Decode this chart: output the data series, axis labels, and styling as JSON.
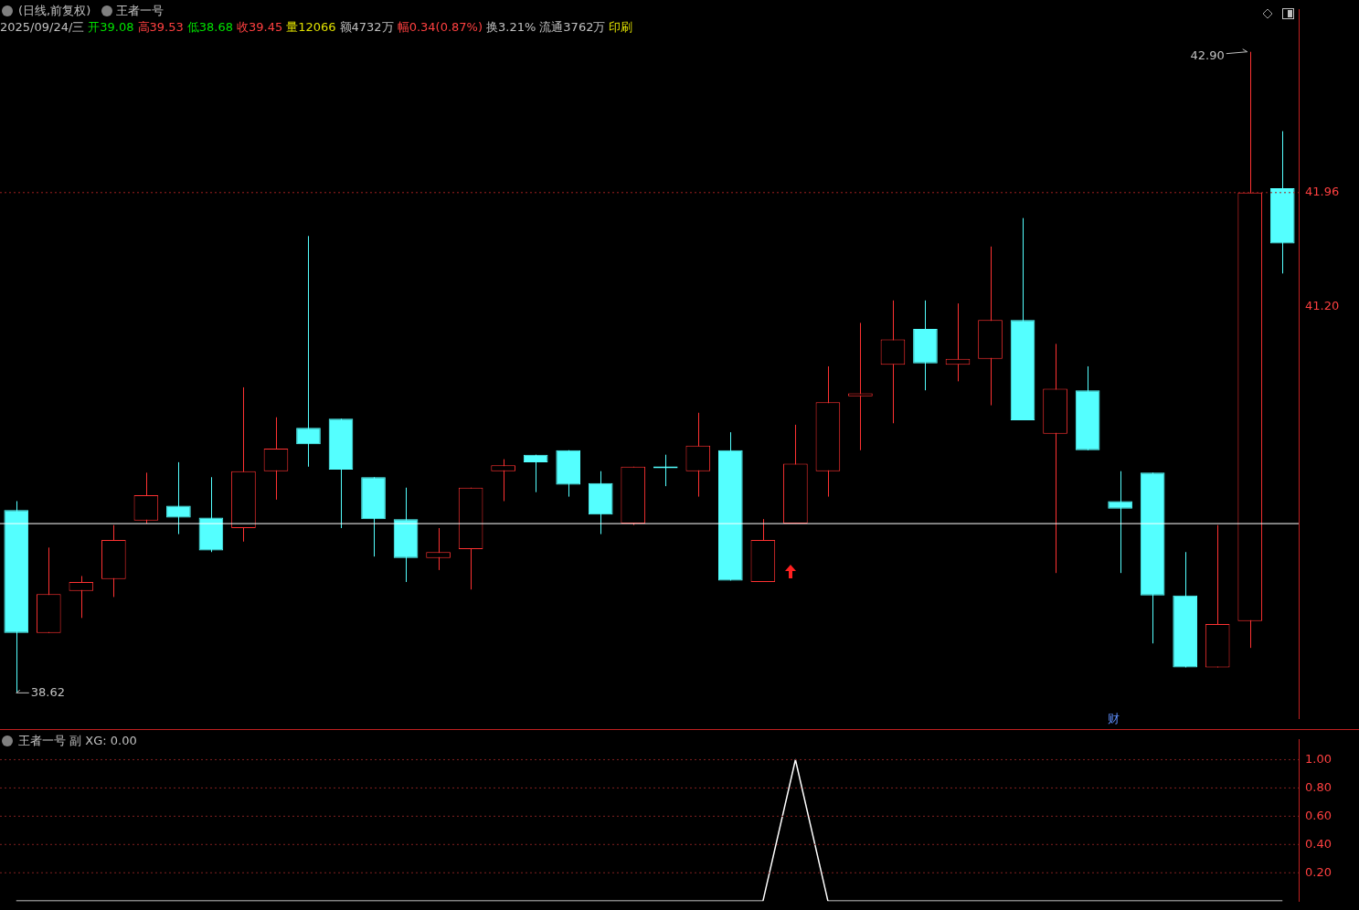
{
  "chart_data": [
    {
      "type": "candlestick",
      "title": "(日线,前复权)",
      "subtitle": "王者一号",
      "annotations": [
        "2025/09/24/三",
        "开39.08",
        "高39.53",
        "低38.68",
        "收39.45",
        "量12066",
        "额4732万",
        "幅0.34(0.87%)",
        "换3.21%",
        "流通3762万",
        "印刷",
        "42.90",
        "38.62",
        "财"
      ],
      "categories": [
        null,
        null,
        null,
        null,
        null,
        null,
        null,
        null,
        null,
        null,
        null,
        null,
        null,
        null,
        null,
        null,
        null,
        null,
        null,
        null,
        null,
        null,
        null,
        null,
        null,
        null,
        null,
        null,
        null,
        null,
        null,
        null,
        null,
        null,
        null,
        null,
        null,
        null,
        null,
        null
      ],
      "ohlc": [
        [
          39.84,
          39.9,
          38.62,
          39.02
        ],
        [
          39.02,
          39.59,
          39.02,
          39.28
        ],
        [
          39.3,
          39.4,
          39.12,
          39.36
        ],
        [
          39.38,
          39.74,
          39.26,
          39.64
        ],
        [
          39.77,
          40.09,
          39.75,
          39.94
        ],
        [
          39.87,
          40.16,
          39.68,
          39.79
        ],
        [
          39.79,
          40.06,
          39.56,
          39.57
        ],
        [
          39.72,
          40.66,
          39.63,
          40.1
        ],
        [
          40.1,
          40.46,
          39.91,
          40.25
        ],
        [
          40.39,
          41.67,
          40.13,
          40.28
        ],
        [
          40.45,
          40.45,
          39.72,
          40.11
        ],
        [
          40.06,
          40.06,
          39.53,
          39.78
        ],
        [
          39.78,
          39.99,
          39.36,
          39.52
        ],
        [
          39.52,
          39.72,
          39.44,
          39.56
        ],
        [
          39.58,
          39.99,
          39.31,
          39.99
        ],
        [
          40.1,
          40.18,
          39.9,
          40.14
        ],
        [
          40.21,
          40.21,
          39.96,
          40.16
        ],
        [
          40.24,
          40.24,
          39.93,
          40.01
        ],
        [
          40.02,
          40.1,
          39.68,
          39.81
        ],
        [
          39.75,
          40.13,
          39.74,
          40.13
        ],
        [
          40.13,
          40.21,
          40.0,
          40.12
        ],
        [
          40.1,
          40.49,
          39.93,
          40.27
        ],
        [
          40.24,
          40.36,
          39.37,
          39.37
        ],
        [
          39.36,
          39.78,
          39.36,
          39.64
        ],
        [
          39.75,
          40.41,
          39.75,
          40.15
        ],
        [
          40.1,
          40.8,
          39.93,
          40.56
        ],
        [
          40.6,
          41.09,
          40.24,
          40.62
        ],
        [
          40.81,
          41.24,
          40.42,
          40.98
        ],
        [
          41.05,
          41.24,
          40.64,
          40.82
        ],
        [
          40.81,
          41.22,
          40.7,
          40.85
        ],
        [
          40.85,
          41.6,
          40.54,
          41.11
        ],
        [
          41.11,
          41.79,
          40.44,
          40.44
        ],
        [
          40.35,
          40.95,
          39.42,
          40.65
        ],
        [
          40.64,
          40.8,
          40.24,
          40.24
        ],
        [
          39.9,
          40.1,
          39.42,
          39.85
        ],
        [
          40.09,
          40.09,
          38.95,
          39.27
        ],
        [
          39.27,
          39.56,
          38.79,
          38.79
        ],
        [
          38.79,
          39.74,
          38.79,
          39.08
        ],
        [
          39.1,
          42.9,
          38.92,
          41.96
        ],
        [
          41.99,
          42.37,
          41.42,
          41.62
        ]
      ],
      "colors": [
        "#54ffff",
        "#ff3232",
        "#ff3232",
        "#ff3232",
        "#ff3232",
        "#54ffff",
        "#54ffff",
        "#ff3232",
        "#ff3232",
        "#54ffff",
        "#54ffff",
        "#54ffff",
        "#54ffff",
        "#ff3232",
        "#ff3232",
        "#ff3232",
        "#54ffff",
        "#54ffff",
        "#54ffff",
        "#ff3232",
        "#54ffff",
        "#ff3232",
        "#54ffff",
        "#ff3232",
        "#ff3232",
        "#ff3232",
        "#ff3232",
        "#ff3232",
        "#54ffff",
        "#ff3232",
        "#ff3232",
        "#54ffff",
        "#ff3232",
        "#54ffff",
        "#54ffff",
        "#54ffff",
        "#54ffff",
        "#ff3232",
        "#ff3232",
        "#54ffff"
      ],
      "ylim": [
        38.45,
        43.18
      ],
      "yticks": [
        41.96,
        {
          "value": 41.2,
          "label": "41.20"
        }
      ],
      "tick_labels": "y",
      "ref_lines": [
        {
          "axis": "y",
          "value": 41.96,
          "color": "#a02020",
          "line_style": "dotted"
        },
        {
          "axis": "y",
          "value": 39.75,
          "color": "#ffffff",
          "line_style": "solid"
        }
      ]
    },
    {
      "type": "line",
      "title": "王者一号 副 XG: 0.00",
      "categories": [
        null,
        null,
        null,
        null,
        null,
        null,
        null,
        null,
        null,
        null,
        null,
        null,
        null,
        null,
        null,
        null,
        null,
        null,
        null,
        null,
        null,
        null,
        null,
        null,
        null,
        null,
        null,
        null,
        null,
        null,
        null,
        null,
        null,
        null,
        null,
        null,
        null,
        null,
        null,
        null
      ],
      "series": [
        {
          "color": "#ffffff",
          "values": [
            0,
            0,
            0,
            0,
            0,
            0,
            0,
            0,
            0,
            0,
            0,
            0,
            0,
            0,
            0,
            0,
            0,
            0,
            0,
            0,
            0,
            0,
            0,
            0,
            1,
            0,
            0,
            0,
            0,
            0,
            0,
            0,
            0,
            0,
            0,
            0,
            0,
            0,
            0,
            0
          ]
        }
      ],
      "ylim": [
        0,
        1.14
      ],
      "yticks": [
        {
          "value": 0.2,
          "label": "0.20"
        },
        {
          "value": 0.4,
          "label": "0.40"
        },
        {
          "value": 0.6,
          "label": "0.60"
        },
        {
          "value": 0.8,
          "label": "0.80"
        },
        {
          "value": 1,
          "label": "1.00"
        }
      ],
      "grid": "y",
      "tick_labels": "y"
    }
  ]
}
